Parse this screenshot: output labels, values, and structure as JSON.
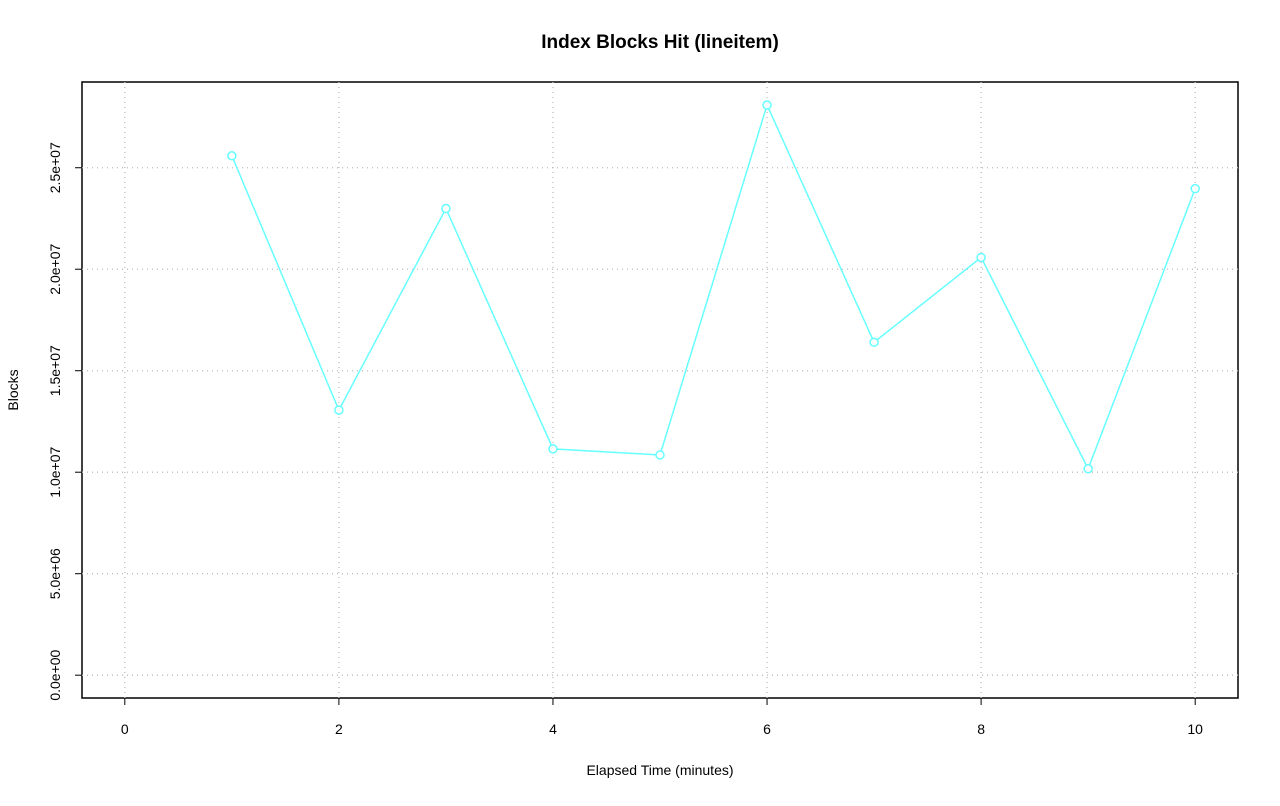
{
  "chart_data": {
    "type": "line",
    "title": "Index Blocks Hit (lineitem)",
    "x_label": "Elapsed Time (minutes)",
    "y_label": "Blocks",
    "x": [
      1,
      2,
      3,
      4,
      5,
      6,
      7,
      8,
      9,
      10
    ],
    "values": [
      25590000,
      13060000,
      22990000,
      11150000,
      10850000,
      28090000,
      16400000,
      20580000,
      10170000,
      23970000
    ],
    "color": "#66ffff",
    "xlim": [
      -0.4,
      10.4
    ],
    "xticks": [
      0,
      2,
      4,
      6,
      8,
      10
    ],
    "ylim": [
      -1124000,
      29224000
    ],
    "yticks": [
      {
        "value": 0,
        "label": "0.0e+00"
      },
      {
        "value": 5000000,
        "label": "5.0e+06"
      },
      {
        "value": 10000000,
        "label": "1.0e+07"
      },
      {
        "value": 15000000,
        "label": "1.5e+07"
      },
      {
        "value": 20000000,
        "label": "2.0e+07"
      },
      {
        "value": 25000000,
        "label": "2.5e+07"
      }
    ],
    "grid": true
  }
}
